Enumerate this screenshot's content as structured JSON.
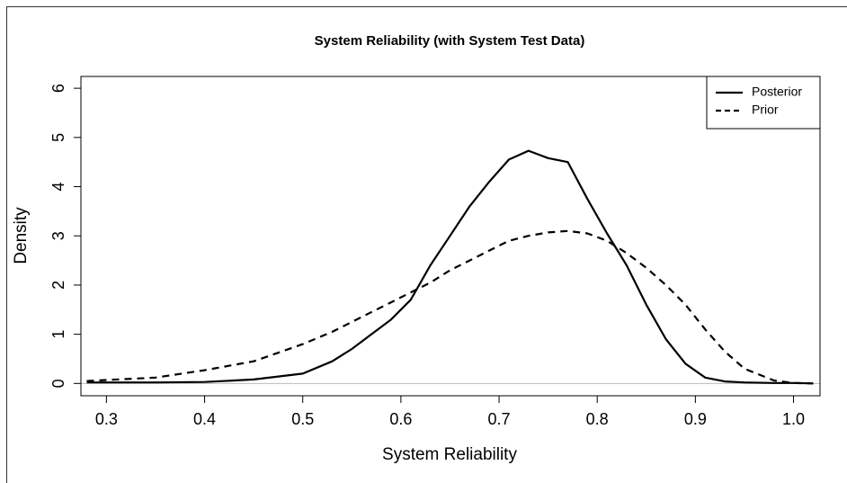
{
  "chart_data": {
    "type": "line",
    "title": "System Reliability (with System Test Data)",
    "xlabel": "System Reliability",
    "ylabel": "Density",
    "x": [
      0.28,
      0.35,
      0.4,
      0.45,
      0.5,
      0.53,
      0.55,
      0.57,
      0.59,
      0.61,
      0.63,
      0.65,
      0.67,
      0.69,
      0.71,
      0.73,
      0.75,
      0.77,
      0.79,
      0.81,
      0.83,
      0.85,
      0.87,
      0.89,
      0.91,
      0.93,
      0.95,
      0.98,
      1.0,
      1.02
    ],
    "series": [
      {
        "name": "Posterior",
        "color": "#000000",
        "linestyle": "solid",
        "values": [
          0.02,
          0.02,
          0.03,
          0.08,
          0.2,
          0.45,
          0.7,
          1.0,
          1.3,
          1.7,
          2.4,
          3.0,
          3.6,
          4.1,
          4.55,
          4.73,
          4.58,
          4.5,
          3.75,
          3.05,
          2.4,
          1.6,
          0.9,
          0.4,
          0.12,
          0.04,
          0.02,
          0.01,
          0.01,
          0
        ]
      },
      {
        "name": "Prior",
        "color": "#000000",
        "linestyle": "dashed",
        "values": [
          0.05,
          0.12,
          0.27,
          0.45,
          0.8,
          1.05,
          1.25,
          1.45,
          1.65,
          1.85,
          2.05,
          2.3,
          2.5,
          2.7,
          2.9,
          3.0,
          3.07,
          3.1,
          3.05,
          2.9,
          2.65,
          2.35,
          2.0,
          1.6,
          1.1,
          0.65,
          0.3,
          0.06,
          0.01,
          0
        ]
      }
    ],
    "xlim": [
      0.274,
      1.027
    ],
    "ylim": [
      -0.25,
      6.24
    ],
    "xticks": [
      0.3,
      0.4,
      0.5,
      0.6,
      0.7,
      0.8,
      0.9,
      {
        "value": 1,
        "label": "1.0"
      }
    ],
    "yticks": [
      0,
      1,
      2,
      3,
      4,
      5,
      6
    ],
    "legend": "topright"
  }
}
